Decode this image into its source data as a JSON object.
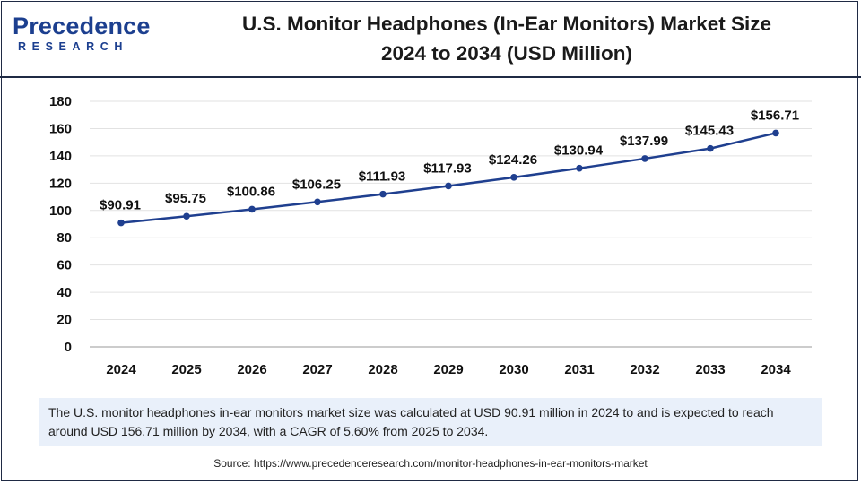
{
  "brand": {
    "name": "Precedence",
    "sub": "RESEARCH"
  },
  "header": {
    "title_line1": "U.S. Monitor Headphones (In-Ear Monitors) Market Size",
    "title_line2": "2024 to 2034 (USD Million)"
  },
  "chart_data": {
    "type": "line",
    "title": "U.S. Monitor Headphones (In-Ear Monitors) Market Size 2024 to 2034 (USD Million)",
    "xlabel": "",
    "ylabel": "",
    "categories": [
      "2024",
      "2025",
      "2026",
      "2027",
      "2028",
      "2029",
      "2030",
      "2031",
      "2032",
      "2033",
      "2034"
    ],
    "series": [
      {
        "name": "Market Size (USD Million)",
        "values": [
          90.91,
          95.75,
          100.86,
          106.25,
          111.93,
          117.93,
          124.26,
          130.94,
          137.99,
          145.43,
          156.71
        ],
        "labels": [
          "$90.91",
          "$95.75",
          "$100.86",
          "$106.25",
          "$111.93",
          "$117.93",
          "$124.26",
          "$130.94",
          "$137.99",
          "$145.43",
          "$156.71"
        ],
        "color": "#1f3f8f"
      }
    ],
    "ylim": [
      0,
      180
    ],
    "yticks": [
      0,
      20,
      40,
      60,
      80,
      100,
      120,
      140,
      160,
      180
    ],
    "grid": true,
    "legend": "none"
  },
  "note": {
    "text": "The U.S. monitor headphones in-ear monitors market size was calculated at USD 90.91 million in 2024 to and is expected to reach around USD 156.71 million by 2034, with a CAGR of 5.60% from 2025 to 2034."
  },
  "source": {
    "text": "Source: https://www.precedenceresearch.com/monitor-headphones-in-ear-monitors-market"
  },
  "colors": {
    "line": "#1f3f8f",
    "brand": "#1c3f8f",
    "grid": "#e2e2e2",
    "axis": "#9a9a9a",
    "note_bg": "#e9f0fa"
  }
}
